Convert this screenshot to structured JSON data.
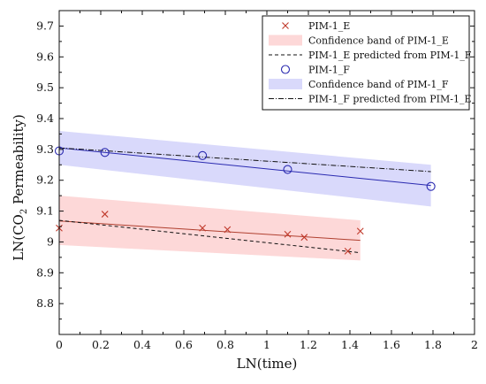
{
  "chart_data": {
    "type": "scatter",
    "xlabel": "LN(time)",
    "ylabel_main": "LN(CO",
    "ylabel_sub": "2",
    "ylabel_rest": " Permeability)",
    "xlim": [
      0,
      2
    ],
    "ylim": [
      8.7,
      9.75
    ],
    "xticks": [
      0,
      0.2,
      0.4,
      0.6,
      0.8,
      1,
      1.2,
      1.4,
      1.6,
      1.8,
      2
    ],
    "xtick_labels": [
      "0",
      "0.2",
      "0.4",
      "0.6",
      "0.8",
      "1",
      "1.2",
      "1.4",
      "1.6",
      "1.8",
      "2"
    ],
    "yticks": [
      8.8,
      8.9,
      9,
      9.1,
      9.2,
      9.3,
      9.4,
      9.5,
      9.6,
      9.7
    ],
    "ytick_labels": [
      "8.8",
      "8.9",
      "9",
      "9.1",
      "9.2",
      "9.3",
      "9.4",
      "9.5",
      "9.6",
      "9.7"
    ],
    "grid": false,
    "legend_placement": "top-right",
    "legend": [
      {
        "label": "PIM-1_E",
        "kind": "marker-x",
        "color": "#c0392b"
      },
      {
        "label": "Confidence band of PIM-1_E",
        "kind": "band",
        "color": "#fdd8d8"
      },
      {
        "label": "PIM-1_E predicted from PIM-1_F",
        "kind": "dashed",
        "color": "#111111"
      },
      {
        "label": "PIM-1_F",
        "kind": "marker-circle",
        "color": "#2a2ab0"
      },
      {
        "label": "Confidence band of PIM-1_F",
        "kind": "band",
        "color": "#d9d9fb"
      },
      {
        "label": "PIM-1_F predicted from PIM-1_E",
        "kind": "dashdot",
        "color": "#111111"
      }
    ],
    "series": [
      {
        "name": "PIM-1_E",
        "marker": "x",
        "color": "#c0392b",
        "x": [
          0,
          0.22,
          0.69,
          0.81,
          1.1,
          1.18,
          1.39,
          1.45
        ],
        "y": [
          9.045,
          9.09,
          9.045,
          9.04,
          9.025,
          9.015,
          8.97,
          9.035
        ]
      },
      {
        "name": "PIM-1_F",
        "marker": "circle",
        "color": "#2a2ab0",
        "x": [
          0,
          0.22,
          0.69,
          1.1,
          1.79
        ],
        "y": [
          9.295,
          9.29,
          9.28,
          9.235,
          9.18
        ]
      }
    ],
    "fits": [
      {
        "name": "PIM-1_E fit",
        "color": "#b04030",
        "style": "solid",
        "x": [
          0,
          1.45
        ],
        "y": [
          9.068,
          9.005
        ]
      },
      {
        "name": "PIM-1_E predicted from PIM-1_F",
        "color": "#111111",
        "style": "dashed",
        "x": [
          0,
          1.45
        ],
        "y": [
          9.07,
          8.965
        ]
      },
      {
        "name": "PIM-1_F fit",
        "color": "#2a2ab0",
        "style": "solid",
        "x": [
          0,
          1.79
        ],
        "y": [
          9.305,
          9.183
        ]
      },
      {
        "name": "PIM-1_F predicted from PIM-1_E",
        "color": "#111111",
        "style": "dashdot",
        "x": [
          0,
          1.79
        ],
        "y": [
          9.305,
          9.228
        ]
      }
    ],
    "bands": [
      {
        "name": "Confidence band of PIM-1_E",
        "color": "#fdd8d8",
        "x": [
          0,
          1.45
        ],
        "upper": [
          9.15,
          9.07
        ],
        "lower": [
          8.99,
          8.94
        ]
      },
      {
        "name": "Confidence band of PIM-1_F",
        "color": "#d9d9fb",
        "x": [
          0,
          1.79
        ],
        "upper": [
          9.36,
          9.25
        ],
        "lower": [
          9.25,
          9.115
        ]
      }
    ]
  }
}
